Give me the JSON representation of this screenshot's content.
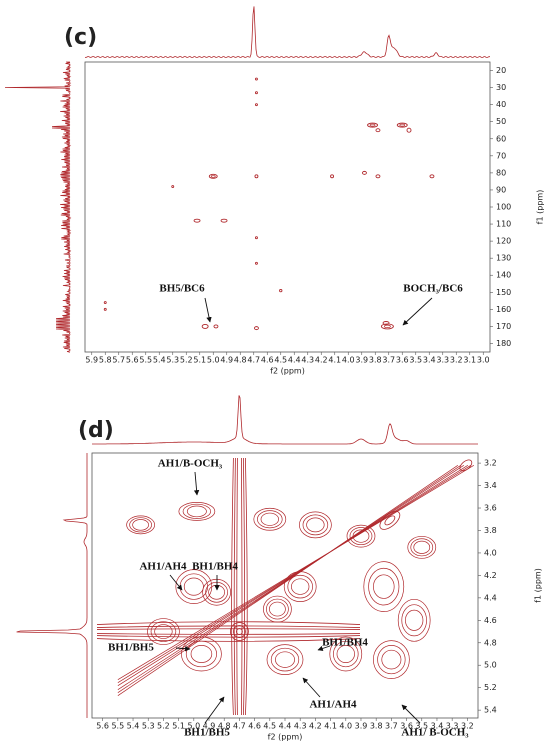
{
  "chart_data": [
    {
      "type": "contour",
      "panel_label": "(c)",
      "xlabel": "f2 (ppm)",
      "ylabel": "f1 (ppm)",
      "xlim": [
        5.95,
        2.95
      ],
      "ylim": [
        15,
        185
      ],
      "xticks": [
        5.9,
        5.8,
        5.7,
        5.6,
        5.5,
        5.4,
        5.3,
        5.2,
        5.1,
        {
          "value": 5,
          "label": "5.0"
        },
        4.9,
        4.8,
        4.7,
        4.6,
        4.5,
        4.4,
        4.3,
        4.2,
        4.1,
        {
          "value": 4,
          "label": "4.0"
        },
        3.9,
        3.8,
        3.7,
        3.6,
        3.5,
        3.4,
        3.3,
        3.2,
        3.1,
        {
          "value": 3,
          "label": "3.0"
        }
      ],
      "yticks": [
        20,
        30,
        40,
        50,
        60,
        70,
        80,
        90,
        100,
        110,
        120,
        130,
        140,
        150,
        160,
        170,
        180
      ],
      "annotations": [
        "BH5/BC6",
        "BOCH₃/BC6"
      ]
    },
    {
      "type": "contour",
      "panel_label": "(d)",
      "xlabel": "f2 (ppm)",
      "ylabel": "f1 (ppm)",
      "xlim": [
        5.67,
        3.13
      ],
      "ylim": [
        3.11,
        5.47
      ],
      "xticks": [
        5.6,
        5.5,
        5.4,
        5.3,
        5.2,
        5.1,
        {
          "value": 5,
          "label": "5.0"
        },
        4.9,
        4.8,
        4.7,
        4.6,
        4.5,
        4.4,
        4.3,
        4.2,
        4.1,
        {
          "value": 4,
          "label": "4.0"
        },
        3.9,
        3.8,
        3.7,
        3.6,
        3.5,
        3.4,
        3.3,
        3.2
      ],
      "yticks": [
        3.2,
        3.4,
        3.6,
        3.8,
        {
          "value": 4,
          "label": "4.0"
        },
        4.2,
        4.4,
        4.6,
        4.8,
        {
          "value": 5,
          "label": "5.0"
        },
        5.2,
        5.4
      ],
      "annotations": [
        "AH1/B-OCH₃",
        "AH1/AH4",
        "BH1/BH4",
        "BH1/BH5",
        "BH1/BH5",
        "BH1/BH4",
        "AH1/AH4",
        "AH1/ B-OCH₃"
      ]
    }
  ]
}
